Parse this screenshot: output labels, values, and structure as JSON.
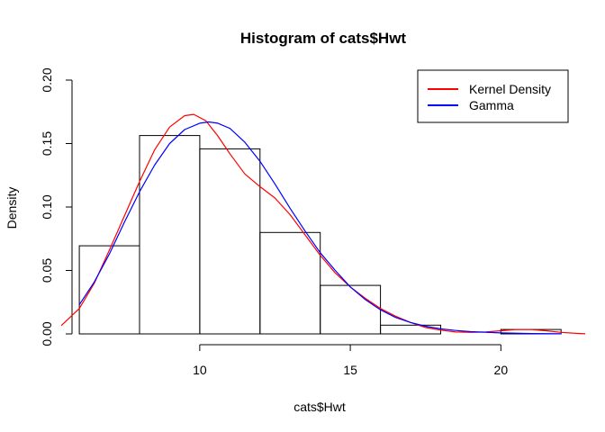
{
  "chart_data": {
    "type": "histogram",
    "title": "Histogram of cats$Hwt",
    "xlabel": "cats$Hwt",
    "ylabel": "Density",
    "xlim": [
      5.4,
      22.8
    ],
    "ylim": [
      0,
      0.2
    ],
    "x_ticks": [
      10,
      15,
      20
    ],
    "y_ticks": [
      0.0,
      0.05,
      0.1,
      0.15,
      0.2
    ],
    "x_tick_labels": [
      "10",
      "15",
      "20"
    ],
    "y_tick_labels": [
      "0.00",
      "0.05",
      "0.10",
      "0.15",
      "0.20"
    ],
    "grid": false,
    "legend_position": "top-right",
    "bins": [
      {
        "start": 6,
        "end": 8,
        "density": 0.0694
      },
      {
        "start": 8,
        "end": 10,
        "density": 0.1563
      },
      {
        "start": 10,
        "end": 12,
        "density": 0.1458
      },
      {
        "start": 12,
        "end": 14,
        "density": 0.0799
      },
      {
        "start": 14,
        "end": 16,
        "density": 0.0382
      },
      {
        "start": 16,
        "end": 18,
        "density": 0.0069
      },
      {
        "start": 18,
        "end": 20,
        "density": 0.0
      },
      {
        "start": 20,
        "end": 22,
        "density": 0.0035
      }
    ],
    "series": [
      {
        "name": "Kernel Density",
        "color": "#ff0000",
        "type": "line",
        "x": [
          5.4,
          6.0,
          6.5,
          7.0,
          7.5,
          8.0,
          8.5,
          9.0,
          9.5,
          9.8,
          10.2,
          10.6,
          11.0,
          11.5,
          12.0,
          12.5,
          13.0,
          13.5,
          14.0,
          14.5,
          15.0,
          15.5,
          16.0,
          16.5,
          17.0,
          17.5,
          18.0,
          18.5,
          19.0,
          19.5,
          20.0,
          20.5,
          21.0,
          21.5,
          22.0,
          22.5,
          22.8
        ],
        "y": [
          0.0065,
          0.02,
          0.04,
          0.066,
          0.093,
          0.12,
          0.145,
          0.163,
          0.172,
          0.173,
          0.168,
          0.156,
          0.142,
          0.126,
          0.116,
          0.107,
          0.094,
          0.078,
          0.062,
          0.048,
          0.037,
          0.028,
          0.02,
          0.014,
          0.009,
          0.005,
          0.003,
          0.0015,
          0.0012,
          0.0015,
          0.0025,
          0.0035,
          0.0035,
          0.0025,
          0.0012,
          0.0004,
          0.0001
        ]
      },
      {
        "name": "Gamma",
        "color": "#0000ff",
        "type": "line",
        "x": [
          6.0,
          6.5,
          7.0,
          7.5,
          8.0,
          8.5,
          9.0,
          9.5,
          10.0,
          10.3,
          10.6,
          11.0,
          11.5,
          12.0,
          12.5,
          13.0,
          13.5,
          14.0,
          14.5,
          15.0,
          15.5,
          16.0,
          16.5,
          17.0,
          17.5,
          18.0,
          18.5,
          19.0,
          20.0,
          21.0,
          22.0
        ],
        "y": [
          0.023,
          0.041,
          0.063,
          0.088,
          0.112,
          0.133,
          0.15,
          0.161,
          0.166,
          0.167,
          0.166,
          0.162,
          0.151,
          0.136,
          0.118,
          0.099,
          0.081,
          0.064,
          0.05,
          0.037,
          0.027,
          0.019,
          0.013,
          0.009,
          0.006,
          0.004,
          0.0027,
          0.0018,
          0.0008,
          0.0003,
          0.0001
        ]
      }
    ]
  }
}
